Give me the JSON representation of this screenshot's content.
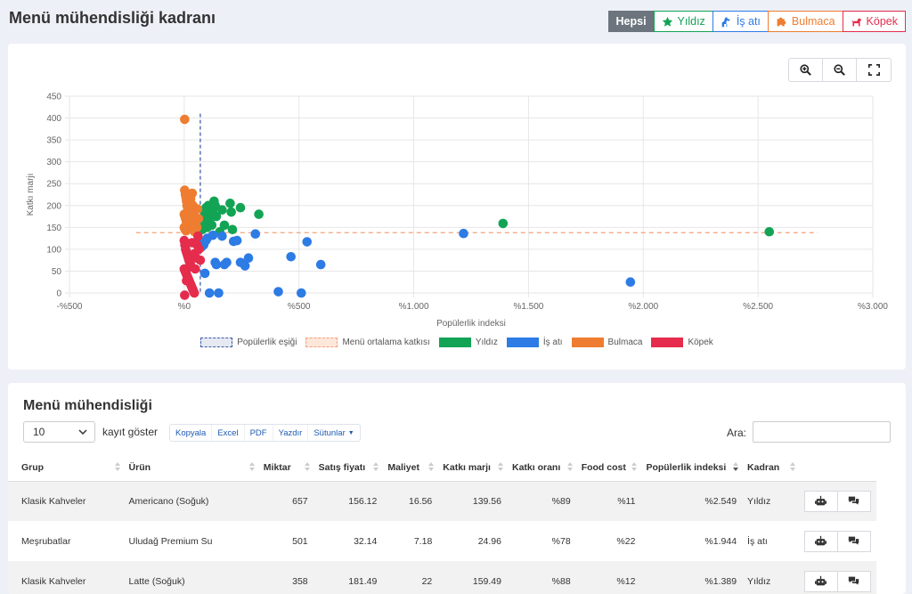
{
  "header": {
    "title": "Menü mühendisliği kadranı"
  },
  "filters": [
    {
      "label": "Hepsi",
      "icon": "",
      "color": "#6c757d",
      "active": true
    },
    {
      "label": "Yıldız",
      "icon": "star-icon",
      "color": "#12a454",
      "active": false
    },
    {
      "label": "İş atı",
      "icon": "horse-icon",
      "color": "#2d7be5",
      "active": false
    },
    {
      "label": "Bulmaca",
      "icon": "puzzle-icon",
      "color": "#ee7d31",
      "active": false
    },
    {
      "label": "Köpek",
      "icon": "dog-icon",
      "color": "#e52c4c",
      "active": false
    }
  ],
  "chart_data": {
    "type": "scatter",
    "xlabel": "Popülerlik indeksi",
    "ylabel": "Katkı marjı",
    "xlim": [
      -500,
      3000
    ],
    "ylim": [
      0,
      450
    ],
    "x_ticks": [
      "-%500",
      "%0",
      "%500",
      "%1.000",
      "%1.500",
      "%2.000",
      "%2.500",
      "%3.000"
    ],
    "y_ticks": [
      "0",
      "50",
      "100",
      "150",
      "200",
      "250",
      "300",
      "350",
      "400",
      "450"
    ],
    "grid": true,
    "legend_position": "bottom",
    "popularity_threshold": 70,
    "avg_contribution": 138,
    "legend": [
      {
        "label": "Popülerlik eşiği",
        "kind": "threshold",
        "color": "#3f5fa8"
      },
      {
        "label": "Menü ortalama katkısı",
        "kind": "average",
        "color": "#f4a27a"
      },
      {
        "label": "Yıldız",
        "kind": "series",
        "color": "#12a454"
      },
      {
        "label": "İş atı",
        "kind": "series",
        "color": "#2d7be5"
      },
      {
        "label": "Bulmaca",
        "kind": "series",
        "color": "#ee7d31"
      },
      {
        "label": "Köpek",
        "kind": "series",
        "color": "#e52c4c"
      }
    ],
    "series": [
      {
        "name": "Yıldız",
        "color": "#12a454",
        "points": [
          [
            2549,
            140
          ],
          [
            1389,
            159
          ],
          [
            79,
            145
          ],
          [
            85,
            170
          ],
          [
            90,
            185
          ],
          [
            95,
            195
          ],
          [
            100,
            150
          ],
          [
            105,
            200
          ],
          [
            110,
            165
          ],
          [
            115,
            180
          ],
          [
            125,
            190
          ],
          [
            130,
            210
          ],
          [
            140,
            175
          ],
          [
            155,
            140
          ],
          [
            165,
            190
          ],
          [
            175,
            155
          ],
          [
            200,
            205
          ],
          [
            205,
            185
          ],
          [
            210,
            145
          ],
          [
            245,
            195
          ],
          [
            325,
            180
          ],
          [
            120,
            155
          ],
          [
            135,
            200
          ],
          [
            90,
            160
          ]
        ]
      },
      {
        "name": "İş atı",
        "color": "#2d7be5",
        "points": [
          [
            1944,
            25
          ],
          [
            1217,
            136
          ],
          [
            75,
            105
          ],
          [
            80,
            115
          ],
          [
            85,
            110
          ],
          [
            90,
            45
          ],
          [
            95,
            120
          ],
          [
            100,
            125
          ],
          [
            110,
            0
          ],
          [
            125,
            132
          ],
          [
            135,
            70
          ],
          [
            140,
            65
          ],
          [
            150,
            0
          ],
          [
            165,
            130
          ],
          [
            175,
            65
          ],
          [
            185,
            70
          ],
          [
            215,
            118
          ],
          [
            230,
            120
          ],
          [
            245,
            70
          ],
          [
            265,
            62
          ],
          [
            280,
            80
          ],
          [
            310,
            135
          ],
          [
            410,
            3
          ],
          [
            465,
            83
          ],
          [
            510,
            0
          ],
          [
            535,
            117
          ],
          [
            595,
            65
          ]
        ]
      },
      {
        "name": "Bulmaca",
        "color": "#ee7d31",
        "points": [
          [
            2,
            397
          ],
          [
            2,
            235
          ],
          [
            5,
            225
          ],
          [
            8,
            218
          ],
          [
            10,
            210
          ],
          [
            12,
            200
          ],
          [
            15,
            195
          ],
          [
            18,
            190
          ],
          [
            20,
            185
          ],
          [
            0,
            180
          ],
          [
            3,
            175
          ],
          [
            6,
            170
          ],
          [
            9,
            165
          ],
          [
            12,
            160
          ],
          [
            15,
            155
          ],
          [
            0,
            150
          ],
          [
            4,
            145
          ],
          [
            8,
            142
          ],
          [
            11,
            148
          ],
          [
            14,
            152
          ],
          [
            17,
            158
          ],
          [
            20,
            162
          ],
          [
            23,
            168
          ],
          [
            26,
            172
          ],
          [
            30,
            178
          ],
          [
            33,
            182
          ],
          [
            36,
            188
          ],
          [
            40,
            196
          ],
          [
            25,
            205
          ],
          [
            35,
            228
          ],
          [
            45,
            175
          ],
          [
            50,
            160
          ],
          [
            55,
            150
          ],
          [
            58,
            192
          ],
          [
            62,
            170
          ],
          [
            45,
            140
          ],
          [
            28,
            215
          ],
          [
            38,
            200
          ]
        ]
      },
      {
        "name": "Köpek",
        "color": "#e52c4c",
        "points": [
          [
            0,
            120
          ],
          [
            3,
            110
          ],
          [
            6,
            100
          ],
          [
            9,
            95
          ],
          [
            12,
            90
          ],
          [
            15,
            85
          ],
          [
            18,
            80
          ],
          [
            21,
            75
          ],
          [
            24,
            70
          ],
          [
            27,
            65
          ],
          [
            30,
            60
          ],
          [
            0,
            55
          ],
          [
            4,
            50
          ],
          [
            8,
            45
          ],
          [
            12,
            40
          ],
          [
            16,
            35
          ],
          [
            20,
            30
          ],
          [
            24,
            25
          ],
          [
            28,
            20
          ],
          [
            32,
            15
          ],
          [
            36,
            10
          ],
          [
            40,
            5
          ],
          [
            44,
            0
          ],
          [
            2,
            -5
          ],
          [
            48,
            55
          ],
          [
            52,
            80
          ],
          [
            56,
            110
          ],
          [
            60,
            130
          ],
          [
            64,
            100
          ],
          [
            70,
            75
          ],
          [
            45,
            90
          ],
          [
            10,
            28
          ],
          [
            34,
            115
          ]
        ]
      }
    ]
  },
  "table": {
    "title": "Menü mühendisliği",
    "length_value": "10",
    "length_label": "kayıt göster",
    "buttons": [
      "Kopyala",
      "Excel",
      "PDF",
      "Yazdır",
      "Sütunlar"
    ],
    "search_label": "Ara:",
    "search_value": "",
    "columns": [
      "Grup",
      "Ürün",
      "Miktar",
      "Satış fiyatı",
      "Maliyet",
      "Katkı marjı",
      "Katkı oranı",
      "Food cost",
      "Popülerlik indeksi",
      "Kadran"
    ],
    "rows": [
      [
        "Klasik Kahveler",
        "Americano (Soğuk)",
        "657",
        "156.12",
        "16.56",
        "139.56",
        "%89",
        "%11",
        "%2.549",
        "Yıldız"
      ],
      [
        "Meşrubatlar",
        "Uludağ Premium Su",
        "501",
        "32.14",
        "7.18",
        "24.96",
        "%78",
        "%22",
        "%1.944",
        "İş atı"
      ],
      [
        "Klasik Kahveler",
        "Latte (Soğuk)",
        "358",
        "181.49",
        "22",
        "159.49",
        "%88",
        "%12",
        "%1.389",
        "Yıldız"
      ]
    ],
    "actions": [
      {
        "icon": "robot-icon",
        "name": "ai-analysis-button"
      },
      {
        "icon": "comments-icon",
        "name": "comments-button"
      }
    ]
  }
}
